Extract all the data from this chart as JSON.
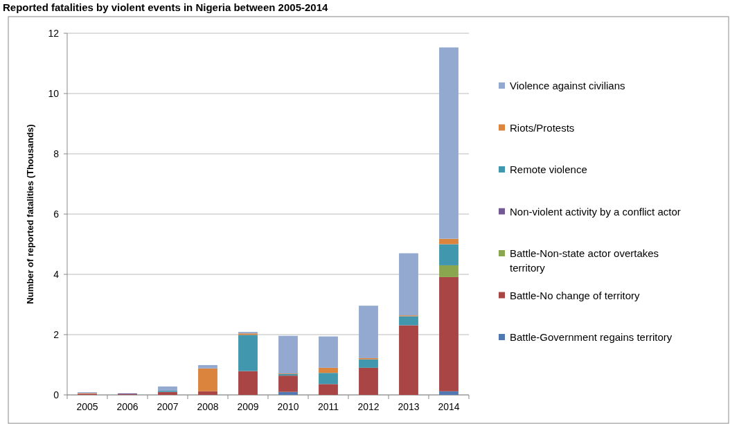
{
  "chart_data": {
    "type": "bar",
    "title": "Reported fatalities by violent events in Nigeria between 2005-2014",
    "ylabel": "Number of reported fatalities (Thousands)",
    "categories": [
      "2005",
      "2006",
      "2007",
      "2008",
      "2009",
      "2010",
      "2011",
      "2012",
      "2013",
      "2014"
    ],
    "stacked": true,
    "ylim": [
      0,
      12
    ],
    "yticks": [
      0,
      2,
      4,
      6,
      8,
      10,
      12
    ],
    "grid": "y",
    "legend": "right",
    "series": [
      {
        "name": "Battle-Government regains territory",
        "color": "#4f79b0",
        "values": [
          0,
          0,
          0,
          0,
          0,
          0.1,
          0,
          0,
          0,
          0.12
        ]
      },
      {
        "name": "Battle-No change of territory",
        "color": "#a94645",
        "values": [
          0.04,
          0.02,
          0.1,
          0.12,
          0.79,
          0.54,
          0.36,
          0.9,
          2.31,
          3.79
        ]
      },
      {
        "name": "Battle-Non-state actor overtakes territory",
        "color": "#8aa64e",
        "values": [
          0,
          0,
          0,
          0,
          0,
          0,
          0,
          0,
          0,
          0.39
        ]
      },
      {
        "name": "Non-violent activity by a conflict actor",
        "color": "#725994",
        "values": [
          0,
          0.03,
          0,
          0,
          0,
          0,
          0,
          0,
          0,
          0
        ]
      },
      {
        "name": "Remote violence",
        "color": "#4198ae",
        "values": [
          0,
          0,
          0.04,
          0,
          1.2,
          0.05,
          0.37,
          0.28,
          0.3,
          0.7
        ]
      },
      {
        "name": "Riots/Protests",
        "color": "#da843d",
        "values": [
          0.02,
          0,
          0,
          0.76,
          0.05,
          0.02,
          0.17,
          0.04,
          0.03,
          0.18
        ]
      },
      {
        "name": "Violence against civilians",
        "color": "#93a9cf",
        "values": [
          0.03,
          0,
          0.14,
          0.11,
          0.05,
          1.25,
          1.04,
          1.74,
          2.06,
          6.35
        ]
      }
    ]
  }
}
